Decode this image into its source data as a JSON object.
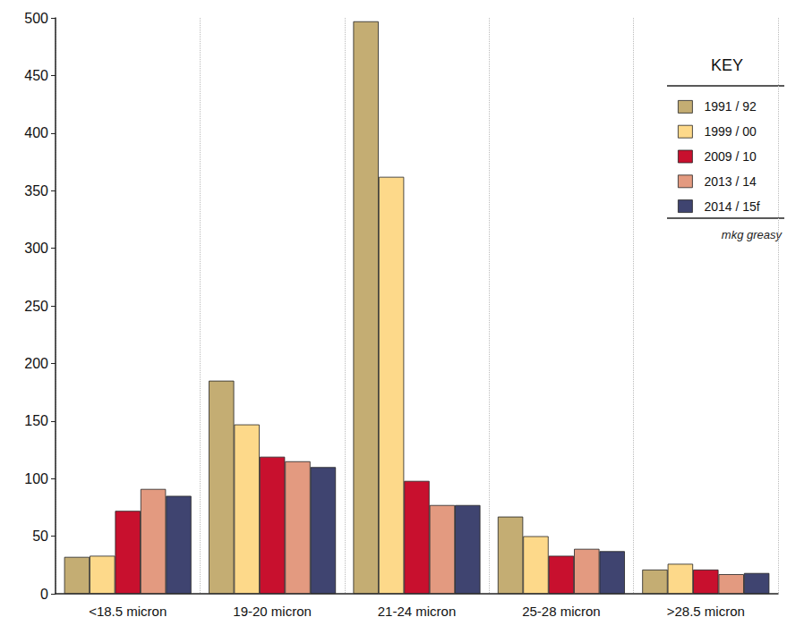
{
  "chart_data": {
    "type": "bar",
    "categories": [
      "<18.5 micron",
      "19-20 micron",
      "21-24 micron",
      "25-28 micron",
      ">28.5 micron"
    ],
    "series": [
      {
        "name": "1991 / 92",
        "color": "#c4ad73",
        "values": [
          32,
          185,
          497,
          67,
          21
        ]
      },
      {
        "name": "1999 / 00",
        "color": "#fdd98a",
        "values": [
          33,
          147,
          362,
          50,
          26
        ]
      },
      {
        "name": "2009 / 10",
        "color": "#c8102e",
        "values": [
          72,
          119,
          98,
          33,
          21
        ]
      },
      {
        "name": "2013 / 14",
        "color": "#e39a80",
        "values": [
          91,
          115,
          77,
          39,
          17
        ]
      },
      {
        "name": "2014 / 15f",
        "color": "#3f4470",
        "values": [
          85,
          110,
          77,
          37,
          18
        ]
      }
    ],
    "ylim": [
      0,
      500
    ],
    "yticks": [
      0,
      50,
      100,
      150,
      200,
      250,
      300,
      350,
      400,
      450,
      500
    ],
    "grid": false,
    "legend": "top-right",
    "legend_title": "KEY",
    "annotations": [
      "mkg greasy"
    ]
  }
}
